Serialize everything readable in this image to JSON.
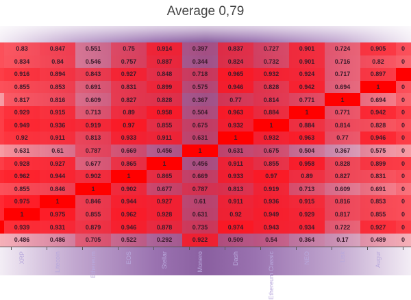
{
  "chart_data": {
    "type": "heatmap",
    "title": "Average 0,79",
    "x_labels": [
      "XRP",
      "Litecoin",
      "Ethereum",
      "EOS",
      "Stellar",
      "Monero",
      "Dash",
      "Ethereum Classic",
      "NEO",
      "Lisk",
      "Augur"
    ],
    "values": [
      [
        0.83,
        0.847,
        0.551,
        0.75,
        0.914,
        0.397,
        0.837,
        0.727,
        0.901,
        0.724,
        0.905
      ],
      [
        0.834,
        0.84,
        0.546,
        0.757,
        0.887,
        0.344,
        0.824,
        0.732,
        0.901,
        0.716,
        0.82
      ],
      [
        0.916,
        0.894,
        0.843,
        0.927,
        0.848,
        0.718,
        0.965,
        0.932,
        0.924,
        0.717,
        0.897
      ],
      [
        0.855,
        0.853,
        0.691,
        0.831,
        0.899,
        0.575,
        0.946,
        0.828,
        0.942,
        0.694,
        1
      ],
      [
        0.817,
        0.816,
        0.609,
        0.827,
        0.828,
        0.367,
        0.77,
        0.814,
        0.771,
        1,
        0.694
      ],
      [
        0.929,
        0.915,
        0.713,
        0.89,
        0.958,
        0.504,
        0.963,
        0.884,
        1,
        0.771,
        0.942
      ],
      [
        0.949,
        0.936,
        0.919,
        0.97,
        0.855,
        0.675,
        0.932,
        1,
        0.884,
        0.814,
        0.828
      ],
      [
        0.92,
        0.911,
        0.813,
        0.933,
        0.911,
        0.631,
        1,
        0.932,
        0.963,
        0.77,
        0.946
      ],
      [
        0.631,
        0.61,
        0.787,
        0.669,
        0.456,
        1,
        0.631,
        0.675,
        0.504,
        0.367,
        0.575
      ],
      [
        0.928,
        0.927,
        0.677,
        0.865,
        1,
        0.456,
        0.911,
        0.855,
        0.958,
        0.828,
        0.899
      ],
      [
        0.962,
        0.944,
        0.902,
        1,
        0.865,
        0.669,
        0.933,
        0.97,
        0.89,
        0.827,
        0.831
      ],
      [
        0.855,
        0.846,
        1,
        0.902,
        0.677,
        0.787,
        0.813,
        0.919,
        0.713,
        0.609,
        0.691
      ],
      [
        0.975,
        1,
        0.846,
        0.944,
        0.927,
        0.61,
        0.911,
        0.936,
        0.915,
        0.816,
        0.853
      ],
      [
        1,
        0.975,
        0.855,
        0.962,
        0.928,
        0.631,
        0.92,
        0.949,
        0.929,
        0.817,
        0.855
      ],
      [
        0.939,
        0.931,
        0.879,
        0.946,
        0.878,
        0.735,
        0.974,
        0.943,
        0.934,
        0.722,
        0.927
      ],
      [
        0.486,
        0.486,
        0.705,
        0.522,
        0.292,
        0.922,
        0.509,
        0.54,
        0.364,
        0.17,
        0.489
      ]
    ],
    "left_edge_fill": [
      0.85,
      0.85,
      0.9,
      0.85,
      0.6,
      0.9,
      0.9,
      0.9,
      0.6,
      0.9,
      0.95,
      0.85,
      0.95,
      0.95,
      1,
      0.5
    ],
    "right_edge_fill": [
      0.85,
      0.8,
      1,
      0.85,
      0.8,
      0.9,
      0.85,
      0.9,
      0.6,
      0.9,
      0.85,
      0.75,
      0.85,
      0.85,
      0.9,
      0.5
    ],
    "right_edge_text": [
      "0",
      "0",
      "",
      "0",
      "0",
      "0",
      "0",
      "0",
      "0",
      "0",
      "0",
      "0",
      "0",
      "0",
      "0",
      "0"
    ],
    "color_low": "#ff0000",
    "grid": false
  }
}
